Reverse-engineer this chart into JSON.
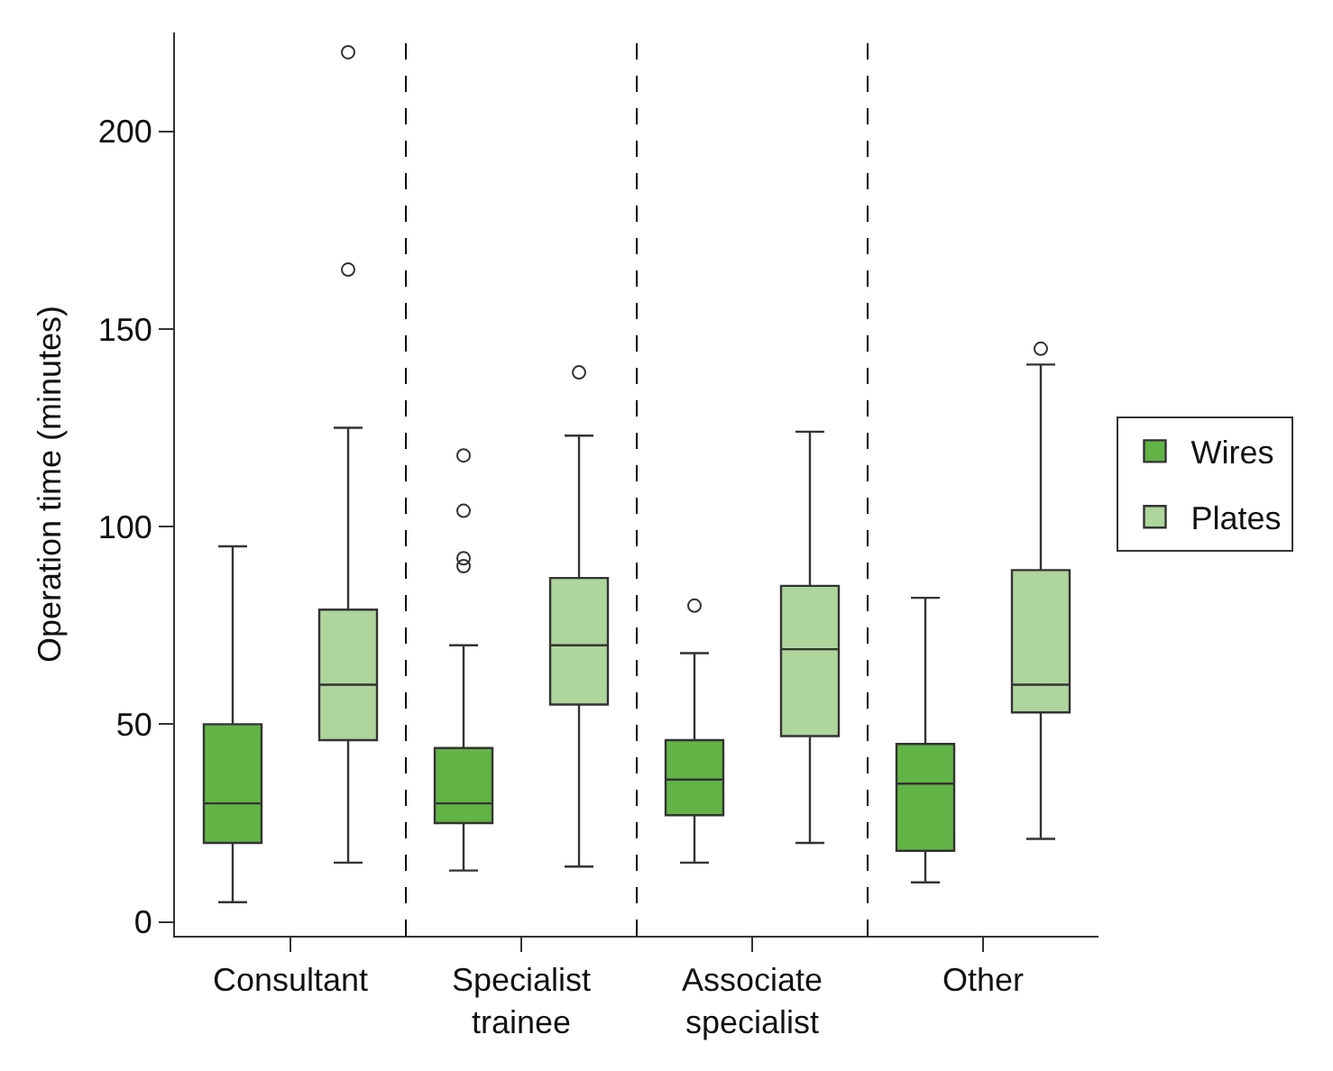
{
  "chart_data": {
    "type": "box",
    "ylabel": "Operation time (minutes)",
    "categories": [
      "Consultant",
      "Specialist trainee",
      "Associate specialist",
      "Other"
    ],
    "series": [
      {
        "name": "Wires",
        "color": "#62b446",
        "boxes": [
          {
            "low": 5,
            "q1": 20,
            "median": 30,
            "q3": 50,
            "high": 95
          },
          {
            "low": 13,
            "q1": 25,
            "median": 30,
            "q3": 44,
            "high": 70,
            "outliers": [
              90,
              92,
              104,
              118
            ]
          },
          {
            "low": 15,
            "q1": 27,
            "median": 36,
            "q3": 46,
            "high": 68,
            "outliers": [
              80
            ]
          },
          {
            "low": 10,
            "q1": 18,
            "median": 35,
            "q3": 45,
            "high": 82
          }
        ]
      },
      {
        "name": "Plates",
        "color": "#aed69c",
        "boxes": [
          {
            "low": 15,
            "q1": 46,
            "median": 60,
            "q3": 79,
            "high": 125,
            "outliers": [
              165,
              220
            ]
          },
          {
            "low": 14,
            "q1": 55,
            "median": 70,
            "q3": 87,
            "high": 123,
            "outliers": [
              139
            ]
          },
          {
            "low": 20,
            "q1": 47,
            "median": 69,
            "q3": 85,
            "high": 124
          },
          {
            "low": 21,
            "q1": 53,
            "median": 60,
            "q3": 89,
            "high": 141,
            "outliers": [
              145
            ]
          }
        ]
      }
    ],
    "ylim": [
      -3.5,
      225
    ],
    "yticks": [
      0,
      50,
      100,
      150,
      200
    ],
    "legend": "right"
  }
}
